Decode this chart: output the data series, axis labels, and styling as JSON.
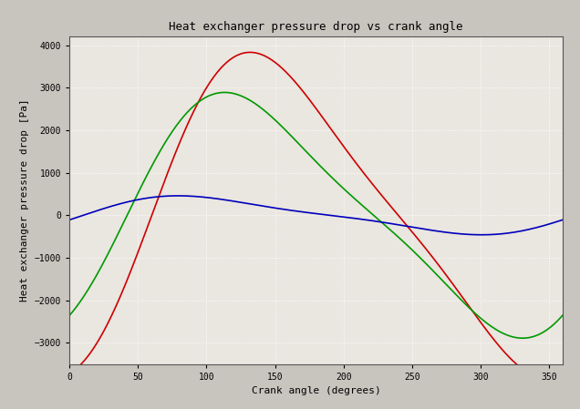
{
  "title": "Heat exchanger pressure drop vs crank angle",
  "xlabel": "Crank angle (degrees)",
  "ylabel": "Heat exchanger pressure drop [Pa]",
  "xlim": [
    0,
    360
  ],
  "ylim": [
    -3500,
    4200
  ],
  "yticks": [
    -3000,
    -2000,
    -1000,
    0,
    1000,
    2000,
    3000,
    4000
  ],
  "xticks": [
    0,
    50,
    100,
    150,
    200,
    250,
    300,
    350
  ],
  "plot_bg": "#eae6e0",
  "outer_bg": "#c8c4be",
  "grid_color": "#ffffff",
  "line_colors": {
    "red": "#cc0000",
    "green": "#009900",
    "blue": "#0000bb"
  },
  "line_width": 1.2,
  "red_params": {
    "amp1": 3600,
    "amp2": 700,
    "phase_deg": 60
  },
  "green_params": {
    "amp1": 2700,
    "amp2": 550,
    "phase_deg": 42
  },
  "blue_params": {
    "amp1": 420,
    "amp2": 100,
    "phase_deg": 10
  }
}
